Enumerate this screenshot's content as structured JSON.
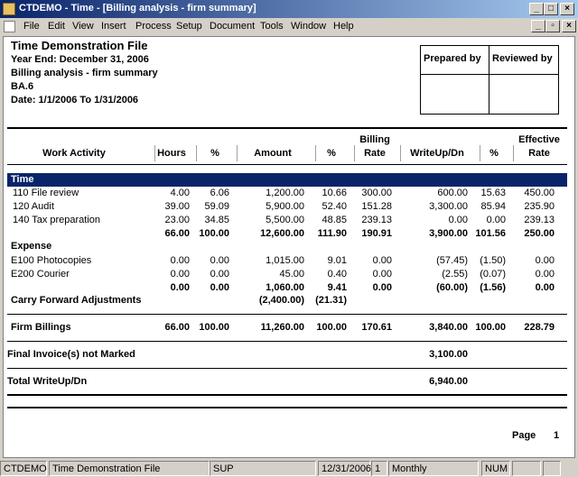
{
  "window": {
    "title": "CTDEMO - Time - [Billing analysis - firm summary]"
  },
  "menu": {
    "items": [
      "File",
      "Edit",
      "View",
      "Insert",
      "Process",
      "Setup",
      "Document",
      "Tools",
      "Window",
      "Help"
    ]
  },
  "report": {
    "header": {
      "firm": "Time Demonstration File",
      "year_end": "Year End: December 31, 2006",
      "report_name": "Billing analysis - firm summary",
      "code": "BA.6",
      "date_range": "Date:  1/1/2006  To  1/31/2006"
    },
    "signoff": {
      "prepared_by": "Prepared by",
      "reviewed_by": "Reviewed by"
    },
    "columns": {
      "activity": "Work Activity",
      "hours": "Hours",
      "hours_pct": "%",
      "amount": "Amount",
      "amount_pct": "%",
      "billing_rate": [
        "Billing",
        "Rate"
      ],
      "writeup": "WriteUp/Dn",
      "writeup_pct": "%",
      "effective_rate": [
        "Effective",
        "Rate"
      ]
    },
    "time_section": {
      "title": "Time",
      "rows": [
        {
          "label": "110 File review",
          "cells": [
            "4.00",
            "6.06",
            "1,200.00",
            "10.66",
            "300.00",
            "600.00",
            "15.63",
            "450.00"
          ]
        },
        {
          "label": "120 Audit",
          "cells": [
            "39.00",
            "59.09",
            "5,900.00",
            "52.40",
            "151.28",
            "3,300.00",
            "85.94",
            "235.90"
          ]
        },
        {
          "label": "140 Tax preparation",
          "cells": [
            "23.00",
            "34.85",
            "5,500.00",
            "48.85",
            "239.13",
            "0.00",
            "0.00",
            "239.13"
          ]
        }
      ],
      "subtotal": [
        "66.00",
        "100.00",
        "12,600.00",
        "111.90",
        "190.91",
        "3,900.00",
        "101.56",
        "250.00"
      ]
    },
    "expense_section": {
      "title": "Expense",
      "rows": [
        {
          "label": "E100 Photocopies",
          "cells": [
            "0.00",
            "0.00",
            "1,015.00",
            "9.01",
            "0.00",
            "(57.45)",
            "(1.50)",
            "0.00"
          ]
        },
        {
          "label": "E200 Courier",
          "cells": [
            "0.00",
            "0.00",
            "45.00",
            "0.40",
            "0.00",
            "(2.55)",
            "(0.07)",
            "0.00"
          ]
        }
      ],
      "subtotal": [
        "0.00",
        "0.00",
        "1,060.00",
        "9.41",
        "0.00",
        "(60.00)",
        "(1.56)",
        "0.00"
      ]
    },
    "carry_forward": {
      "label": "Carry Forward Adjustments",
      "cells": [
        null,
        null,
        "(2,400.00)",
        "(21.31)",
        null,
        null,
        null,
        null
      ]
    },
    "firm_billings": {
      "label": "Firm Billings",
      "cells": [
        "66.00",
        "100.00",
        "11,260.00",
        "100.00",
        "170.61",
        "3,840.00",
        "100.00",
        "228.79"
      ]
    },
    "final_invoice": {
      "label": "Final Invoice(s) not Marked",
      "cells": [
        null,
        null,
        null,
        null,
        null,
        "3,100.00",
        null,
        null
      ]
    },
    "total_writeup": {
      "label": "Total WriteUp/Dn",
      "cells": [
        null,
        null,
        null,
        null,
        null,
        "6,940.00",
        null,
        null
      ]
    },
    "page": {
      "label": "Page",
      "number": "1"
    }
  },
  "status_bar": {
    "panels": [
      "CTDEMO",
      "Time Demonstration File",
      "SUP",
      "12/31/2006",
      "1",
      "Monthly",
      "NUM"
    ]
  }
}
